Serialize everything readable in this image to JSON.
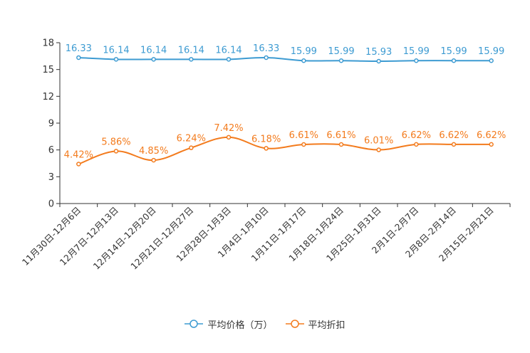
{
  "chart_data": {
    "type": "line",
    "categories": [
      "11月30日-12月6日",
      "12月7日-12月13日",
      "12月14日-12月20日",
      "12月21日-12月27日",
      "12月28日-1月3日",
      "1月4日-1月10日",
      "1月11日-1月17日",
      "1月18日-1月24日",
      "1月25日-1月31日",
      "2月1日-2月7日",
      "2月8日-2月14日",
      "2月15日-2月21日"
    ],
    "ylim": [
      0,
      18
    ],
    "yticks": [
      "0",
      "3",
      "6",
      "9",
      "12",
      "15",
      "18"
    ],
    "series": [
      {
        "name": "平均价格（万）",
        "color": "#3d9bd2",
        "values": [
          16.33,
          16.14,
          16.14,
          16.14,
          16.14,
          16.33,
          15.99,
          15.99,
          15.93,
          15.99,
          15.99,
          15.99
        ],
        "labels": [
          "16.33",
          "16.14",
          "16.14",
          "16.14",
          "16.14",
          "16.33",
          "15.99",
          "15.99",
          "15.93",
          "15.99",
          "15.99",
          "15.99"
        ]
      },
      {
        "name": "平均折扣",
        "color": "#f37b1d",
        "values": [
          4.42,
          5.86,
          4.85,
          6.24,
          7.42,
          6.18,
          6.61,
          6.61,
          6.01,
          6.62,
          6.62,
          6.62
        ],
        "labels": [
          "4.42%",
          "5.86%",
          "4.85%",
          "6.24%",
          "7.42%",
          "6.18%",
          "6.61%",
          "6.61%",
          "6.01%",
          "6.62%",
          "6.62%",
          "6.62%"
        ]
      }
    ]
  }
}
